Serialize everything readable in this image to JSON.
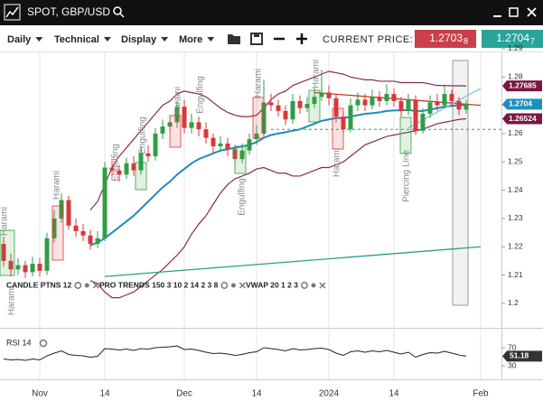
{
  "app": {
    "title": "SPOT, GBP/USD",
    "menus": [
      "Daily",
      "Technical",
      "Display",
      "More"
    ],
    "price_label": "CURRENT PRICE:",
    "bid": {
      "main": "1.2703",
      "pip": "8"
    },
    "ask": {
      "main": "1.2704",
      "pip": "7"
    }
  },
  "indicators": [
    "CANDLE PTNS 12",
    "PRO TRENDS 150 3 10 2 14 2 3 8",
    "VWAP 20 1 2 3"
  ],
  "annotations": [
    "Harami",
    "Harami",
    "Engulfing",
    "Engulfing",
    "Harami",
    "Engulfing",
    "Engulfing",
    "Harami",
    "Harami",
    "Harami",
    "Piercing Line",
    "Harami"
  ],
  "chart_data": [
    {
      "type": "candlestick",
      "categories": [
        null,
        null,
        null,
        null,
        null,
        "Nov",
        null,
        null,
        null,
        null,
        null,
        null,
        null,
        null,
        "14",
        null,
        null,
        null,
        null,
        null,
        null,
        null,
        null,
        null,
        null,
        "Dec",
        null,
        null,
        null,
        null,
        null,
        null,
        null,
        null,
        null,
        "14",
        null,
        null,
        null,
        null,
        null,
        null,
        null,
        null,
        null,
        "2024",
        null,
        null,
        null,
        null,
        null,
        null,
        null,
        null,
        "14",
        null,
        null,
        null,
        null,
        null,
        null,
        null,
        null,
        null,
        null,
        null,
        "Feb"
      ],
      "open": [
        1.221,
        1.215,
        1.212,
        1.2135,
        1.211,
        1.214,
        1.2115,
        1.223,
        1.23,
        1.2365,
        1.2275,
        1.2255,
        1.224,
        1.221,
        1.223,
        1.248,
        1.247,
        1.2455,
        1.2495,
        1.247,
        1.253,
        1.252,
        1.26,
        1.2625,
        1.264,
        1.2695,
        1.262,
        1.264,
        1.2615,
        1.2585,
        1.2555,
        1.2565,
        1.2545,
        1.251,
        1.254,
        1.258,
        1.26,
        1.271,
        1.27,
        1.268,
        1.265,
        1.2715,
        1.269,
        1.2705,
        1.273,
        1.2745,
        1.2725,
        1.266,
        1.2615,
        1.27,
        1.272,
        1.27,
        1.273,
        1.2715,
        1.274,
        1.2715,
        1.268,
        1.272,
        1.261,
        1.267,
        1.271,
        1.27,
        1.274,
        1.2715,
        1.2685,
        null,
        null
      ],
      "high": [
        1.2235,
        1.2175,
        1.216,
        1.215,
        1.2165,
        1.216,
        1.225,
        1.233,
        1.239,
        1.238,
        1.23,
        1.228,
        1.226,
        1.2255,
        1.25,
        1.2505,
        1.249,
        1.2515,
        1.252,
        1.2555,
        1.256,
        1.262,
        1.265,
        1.2665,
        1.2715,
        1.272,
        1.267,
        1.266,
        1.264,
        1.26,
        1.259,
        1.2585,
        1.256,
        1.2565,
        1.26,
        1.263,
        1.279,
        1.274,
        1.272,
        1.27,
        1.274,
        1.2735,
        1.273,
        1.276,
        1.2825,
        1.277,
        1.274,
        1.268,
        1.2725,
        1.2745,
        1.274,
        1.2755,
        1.275,
        1.2775,
        1.276,
        1.273,
        1.274,
        1.2735,
        1.269,
        1.2735,
        1.274,
        1.277,
        1.2755,
        1.273,
        1.272,
        null,
        null
      ],
      "low": [
        1.213,
        1.2095,
        1.21,
        1.209,
        1.2095,
        1.2095,
        1.21,
        1.2215,
        1.2285,
        1.226,
        1.2235,
        1.222,
        1.219,
        1.2195,
        1.222,
        1.2445,
        1.243,
        1.244,
        1.245,
        1.2455,
        1.25,
        1.2505,
        1.258,
        1.2605,
        1.262,
        1.26,
        1.26,
        1.259,
        1.2565,
        1.253,
        1.2535,
        1.252,
        1.249,
        1.2495,
        1.2525,
        1.256,
        1.259,
        1.268,
        1.266,
        1.263,
        1.2635,
        1.267,
        1.2675,
        1.269,
        1.2715,
        1.27,
        1.264,
        1.26,
        1.2605,
        1.268,
        1.268,
        1.2685,
        1.2695,
        1.27,
        1.2695,
        1.266,
        1.2665,
        1.2595,
        1.26,
        1.2655,
        1.268,
        1.269,
        1.2695,
        1.2665,
        1.267,
        null,
        null
      ],
      "close": [
        1.215,
        1.212,
        1.2135,
        1.211,
        1.214,
        1.2115,
        1.223,
        1.23,
        1.2365,
        1.2275,
        1.2255,
        1.224,
        1.221,
        1.223,
        1.248,
        1.247,
        1.2455,
        1.2495,
        1.247,
        1.253,
        1.252,
        1.26,
        1.2625,
        1.264,
        1.2695,
        1.262,
        1.264,
        1.2615,
        1.2585,
        1.2555,
        1.2565,
        1.2545,
        1.251,
        1.254,
        1.258,
        1.26,
        1.271,
        1.27,
        1.268,
        1.265,
        1.2715,
        1.269,
        1.2705,
        1.273,
        1.2745,
        1.2725,
        1.266,
        1.2615,
        1.27,
        1.272,
        1.27,
        1.273,
        1.2715,
        1.274,
        1.2715,
        1.268,
        1.272,
        1.261,
        1.267,
        1.271,
        1.27,
        1.274,
        1.2715,
        1.2685,
        1.2704,
        null,
        null
      ],
      "up_color": "#2f9e44",
      "down_color": "#d9383a",
      "series": [
        {
          "color": "#1f8ac0",
          "values": [
            null,
            null,
            null,
            null,
            null,
            null,
            null,
            null,
            null,
            null,
            null,
            null,
            1.2205,
            1.2215,
            1.223,
            1.225,
            1.227,
            1.229,
            1.231,
            1.2335,
            1.236,
            1.2385,
            1.241,
            1.243,
            1.2455,
            1.2475,
            1.2495,
            1.251,
            1.252,
            1.253,
            1.254,
            1.2545,
            1.255,
            1.2555,
            1.256,
            1.257,
            1.2585,
            1.2595,
            1.26,
            1.2605,
            1.261,
            1.2615,
            1.2625,
            1.2635,
            1.2645,
            1.265,
            1.2655,
            1.2655,
            1.266,
            1.2665,
            1.267,
            1.2672,
            1.2675,
            1.268,
            1.2682,
            1.2682,
            1.2683,
            1.268,
            1.268,
            1.2685,
            1.269,
            1.2695,
            1.2698,
            1.27,
            1.2702,
            null,
            null
          ]
        },
        {
          "color": "#8b2a4a",
          "values": [
            null,
            null,
            null,
            null,
            null,
            null,
            null,
            null,
            null,
            null,
            null,
            null,
            1.233,
            1.236,
            1.242,
            1.248,
            1.252,
            1.255,
            1.258,
            1.261,
            1.264,
            1.267,
            1.27,
            1.2715,
            1.274,
            1.275,
            1.2745,
            1.274,
            1.273,
            1.271,
            1.269,
            1.2675,
            1.2665,
            1.266,
            1.266,
            1.2665,
            1.269,
            1.272,
            1.274,
            1.275,
            1.277,
            1.278,
            1.279,
            1.28,
            1.281,
            1.282,
            1.2815,
            1.281,
            1.28,
            1.2795,
            1.279,
            1.279,
            1.2785,
            1.2785,
            1.2785,
            1.278,
            1.278,
            1.278,
            1.278,
            1.2775,
            1.277,
            1.277,
            1.2769,
            1.2769,
            1.27685,
            null,
            null
          ]
        },
        {
          "color": "#8b2a4a",
          "values": [
            null,
            null,
            null,
            null,
            null,
            null,
            null,
            null,
            null,
            null,
            null,
            null,
            1.208,
            1.207,
            1.204,
            1.202,
            1.202,
            1.203,
            1.204,
            1.206,
            1.208,
            1.21,
            1.212,
            1.2145,
            1.217,
            1.22,
            1.2245,
            1.228,
            1.231,
            1.235,
            1.239,
            1.242,
            1.244,
            1.245,
            1.246,
            1.2475,
            1.248,
            1.247,
            1.246,
            1.246,
            1.245,
            1.245,
            1.246,
            1.247,
            1.248,
            1.248,
            1.249,
            1.25,
            1.252,
            1.254,
            1.256,
            1.257,
            1.258,
            1.259,
            1.2595,
            1.26,
            1.2605,
            1.261,
            1.2615,
            1.2625,
            1.2635,
            1.264,
            1.2645,
            1.265,
            1.26524,
            null,
            null
          ]
        }
      ],
      "trend_lines": [
        {
          "color": "#c0392b",
          "start": [
            43,
            1.2745
          ],
          "end": [
            66,
            1.27
          ]
        },
        {
          "color": "#2a9d8f",
          "start": [
            14,
            1.2095
          ],
          "end": [
            66,
            1.22
          ]
        },
        {
          "color": "#7ec8e3",
          "start": [
            56,
            1.262
          ],
          "end": [
            66,
            1.276
          ]
        }
      ],
      "horizontal_line": {
        "value": 1.2615,
        "start": 37,
        "color": "#2a9d8f"
      },
      "price_tags": [
        {
          "value": 1.27685,
          "color": "#7b1740"
        },
        {
          "value": 1.2704,
          "color": "#1d8fc4"
        },
        {
          "value": 1.26524,
          "color": "#7b1740"
        }
      ],
      "ylim": [
        1.1955,
        1.2887
      ],
      "yticks": [
        1.2,
        1.21,
        1.22,
        1.23,
        1.24,
        1.25,
        1.26,
        1.27,
        1.28,
        1.29
      ],
      "grid": "x"
    },
    {
      "type": "line",
      "title": "RSI 14",
      "color": "#222222",
      "values": [
        45,
        43,
        44,
        42,
        45,
        43,
        52,
        58,
        63,
        55,
        53,
        52,
        49,
        51,
        68,
        67,
        65,
        67,
        64,
        68,
        67,
        70,
        71,
        72,
        74,
        66,
        67,
        64,
        60,
        57,
        58,
        56,
        53,
        55,
        59,
        61,
        70,
        68,
        66,
        63,
        68,
        65,
        66,
        68,
        69,
        66,
        58,
        53,
        61,
        63,
        60,
        63,
        61,
        64,
        60,
        56,
        60,
        49,
        55,
        59,
        58,
        62,
        58,
        54,
        51.18,
        null,
        null
      ],
      "ylim": [
        12,
        96
      ],
      "yticks": [
        30,
        70
      ],
      "tag_color": "#333333"
    }
  ]
}
